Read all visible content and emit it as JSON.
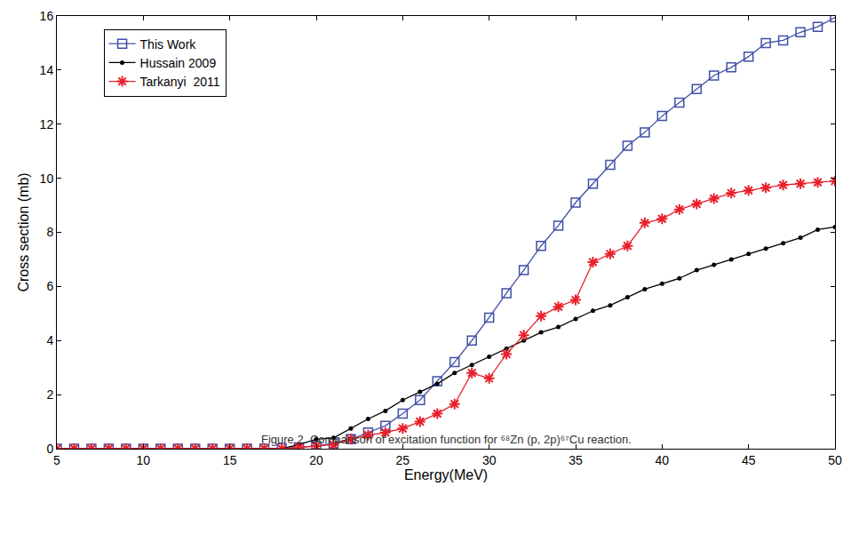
{
  "chart_data": {
    "type": "line",
    "title": "Figure 2. Comparison of excitation function for ⁶⁸Zn (p, 2p)⁶⁷Cu reaction.",
    "x_label": "Energy(MeV)",
    "y_label": "Cross section (mb)",
    "x": [
      5,
      6,
      7,
      8,
      9,
      10,
      11,
      12,
      13,
      14,
      15,
      16,
      17,
      18,
      19,
      20,
      21,
      22,
      23,
      24,
      25,
      26,
      27,
      28,
      29,
      30,
      31,
      32,
      33,
      34,
      35,
      36,
      37,
      38,
      39,
      40,
      41,
      42,
      43,
      44,
      45,
      46,
      47,
      48,
      49,
      50
    ],
    "series": [
      {
        "name": "This Work",
        "color": "#3f4fa8",
        "marker": "square",
        "values": [
          0,
          0,
          0,
          0,
          0,
          0,
          0,
          0,
          0,
          0,
          0,
          0,
          0,
          0.02,
          0.05,
          0.1,
          0.2,
          0.35,
          0.6,
          0.85,
          1.3,
          1.8,
          2.5,
          3.2,
          4.0,
          4.85,
          5.75,
          6.6,
          7.5,
          8.25,
          9.1,
          9.8,
          10.5,
          11.2,
          11.7,
          12.3,
          12.8,
          13.3,
          13.8,
          14.1,
          14.5,
          15.0,
          15.1,
          15.4,
          15.6,
          15.95
        ]
      },
      {
        "name": "Hussain 2009",
        "color": "#000000",
        "marker": "dot",
        "values": [
          0,
          0,
          0,
          0,
          0,
          0,
          0,
          0,
          0,
          0,
          0,
          0,
          0,
          0,
          0.15,
          0.35,
          0.4,
          0.75,
          1.1,
          1.4,
          1.8,
          2.1,
          2.4,
          2.8,
          3.1,
          3.4,
          3.7,
          4.0,
          4.3,
          4.5,
          4.8,
          5.1,
          5.3,
          5.6,
          5.9,
          6.1,
          6.3,
          6.6,
          6.8,
          7.0,
          7.2,
          7.4,
          7.6,
          7.8,
          8.1,
          8.2
        ]
      },
      {
        "name": "Tarkanyi  2011",
        "color": "#e8202a",
        "marker": "star",
        "values": [
          0,
          0,
          0,
          0,
          0,
          0,
          0,
          0,
          0,
          0,
          0,
          0,
          0,
          0,
          0.05,
          0.1,
          0.15,
          0.35,
          0.5,
          0.6,
          0.75,
          1.0,
          1.3,
          1.65,
          2.8,
          2.6,
          3.5,
          4.2,
          4.9,
          5.25,
          5.5,
          6.9,
          7.2,
          7.5,
          8.35,
          8.5,
          8.85,
          9.05,
          9.25,
          9.45,
          9.55,
          9.65,
          9.75,
          9.8,
          9.85,
          9.9
        ]
      }
    ],
    "xlim": [
      5,
      50
    ],
    "xticks": [
      5,
      10,
      15,
      20,
      25,
      30,
      35,
      40,
      45,
      50
    ],
    "ylim": [
      0,
      16
    ],
    "yticks": [
      0,
      2,
      4,
      6,
      8,
      10,
      12,
      14,
      16
    ],
    "grid": false,
    "legend": "upper left"
  }
}
